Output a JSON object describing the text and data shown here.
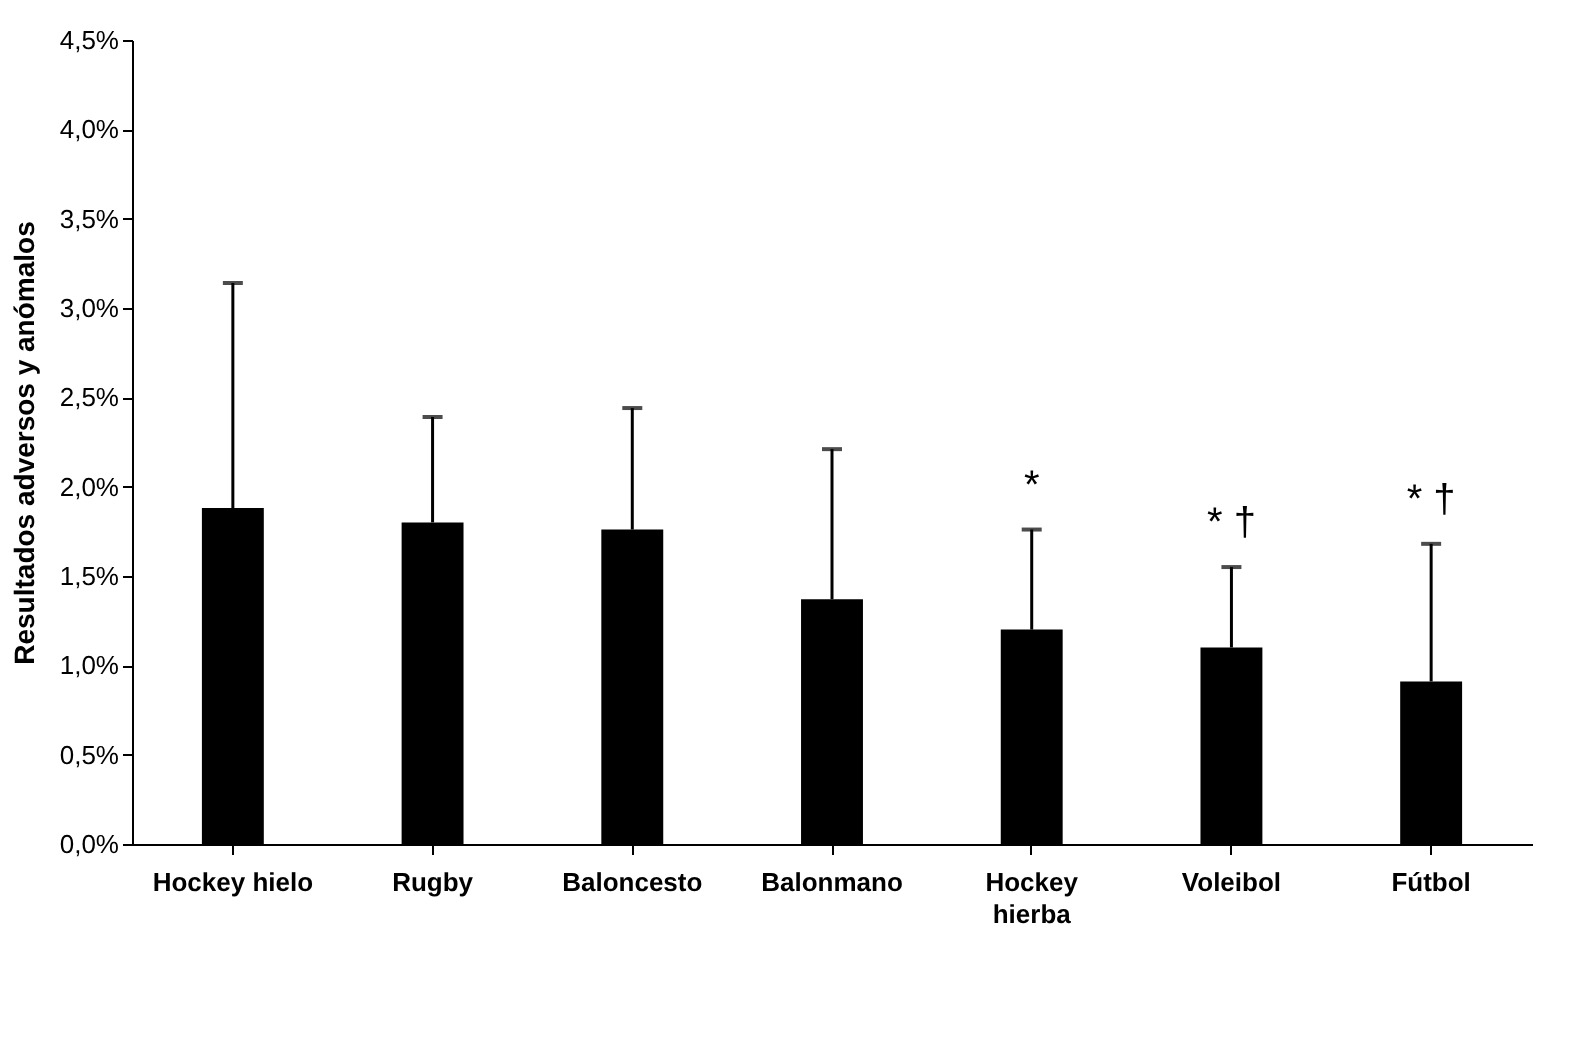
{
  "chart_data": {
    "type": "bar",
    "ylabel": "Resultados adversos y anómalos",
    "categories": [
      "Hockey hielo",
      "Rugby",
      "Baloncesto",
      "Balonmano",
      "Hockey hierba",
      "Voleibol",
      "Fútbol"
    ],
    "values": [
      1.88,
      1.8,
      1.76,
      1.37,
      1.2,
      1.1,
      0.91
    ],
    "errors": [
      [
        1.88,
        3.14
      ],
      [
        1.8,
        2.39
      ],
      [
        1.76,
        2.44
      ],
      [
        1.37,
        2.21
      ],
      [
        1.2,
        1.76
      ],
      [
        1.1,
        1.55
      ],
      [
        0.91,
        1.68
      ]
    ],
    "color": "#000000",
    "ylim": [
      0,
      4.5
    ],
    "yticks": [
      {
        "value": 0,
        "label": "0,0%"
      },
      {
        "value": 0.5,
        "label": "0,5%"
      },
      {
        "value": 1,
        "label": "1,0%"
      },
      {
        "value": 1.5,
        "label": "1,5%"
      },
      {
        "value": 2,
        "label": "2,0%"
      },
      {
        "value": 2.5,
        "label": "2,5%"
      },
      {
        "value": 3,
        "label": "3,0%"
      },
      {
        "value": 3.5,
        "label": "3,5%"
      },
      {
        "value": 4,
        "label": "4,0%"
      },
      {
        "value": 4.5,
        "label": "4,5%"
      }
    ],
    "annotations": [
      {
        "text": "*",
        "x": "Hockey hierba",
        "y": 1.76
      },
      {
        "text": "* †",
        "x": "Voleibol",
        "y": 1.55
      },
      {
        "text": "* †",
        "x": "Fútbol",
        "y": 1.68
      }
    ],
    "grid": false
  }
}
